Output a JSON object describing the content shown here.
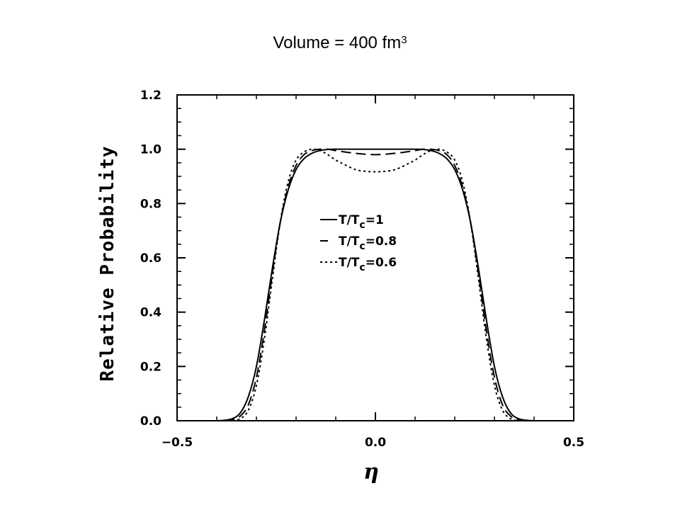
{
  "title": {
    "text": "Volume = 400 fm",
    "superscript": "3"
  },
  "chart_data": {
    "type": "line",
    "title": "Volume = 400 fm3",
    "xlabel": "η",
    "ylabel": "Relative Probability",
    "xlim": [
      -0.5,
      0.5
    ],
    "ylim": [
      0.0,
      1.2
    ],
    "x_ticks": [
      -0.5,
      0.0,
      0.5
    ],
    "x_tick_labels": [
      "−0.5",
      "0.0",
      "0.5"
    ],
    "y_ticks": [
      0.0,
      0.2,
      0.4,
      0.6,
      0.8,
      1.0,
      1.2
    ],
    "y_tick_labels": [
      "0.0",
      "0.2",
      "0.4",
      "0.6",
      "0.8",
      "1.0",
      "1.2"
    ],
    "grid": false,
    "legend_position": "center",
    "series": [
      {
        "name": "T/Tc=1",
        "style": "solid",
        "x": [
          -0.4,
          -0.38,
          -0.36,
          -0.34,
          -0.32,
          -0.3,
          -0.28,
          -0.26,
          -0.24,
          -0.22,
          -0.2,
          -0.18,
          -0.16,
          -0.14,
          -0.12,
          -0.1,
          -0.05,
          0.0,
          0.05,
          0.1,
          0.12,
          0.14,
          0.16,
          0.18,
          0.2,
          0.22,
          0.24,
          0.26,
          0.28,
          0.3,
          0.32,
          0.34,
          0.36,
          0.38,
          0.4
        ],
        "y": [
          0.0,
          0.002,
          0.008,
          0.03,
          0.09,
          0.2,
          0.37,
          0.56,
          0.73,
          0.85,
          0.925,
          0.965,
          0.985,
          0.995,
          0.999,
          1.0,
          1.0,
          1.0,
          1.0,
          1.0,
          0.999,
          0.995,
          0.985,
          0.965,
          0.925,
          0.85,
          0.73,
          0.56,
          0.37,
          0.2,
          0.09,
          0.03,
          0.008,
          0.002,
          0.0
        ]
      },
      {
        "name": "T/Tc=0.8",
        "style": "dashed",
        "x": [
          -0.38,
          -0.36,
          -0.34,
          -0.32,
          -0.3,
          -0.28,
          -0.26,
          -0.24,
          -0.22,
          -0.2,
          -0.18,
          -0.16,
          -0.14,
          -0.12,
          -0.1,
          -0.05,
          0.0,
          0.05,
          0.1,
          0.12,
          0.14,
          0.16,
          0.18,
          0.2,
          0.22,
          0.24,
          0.26,
          0.28,
          0.3,
          0.32,
          0.34,
          0.36,
          0.38
        ],
        "y": [
          0.0,
          0.004,
          0.018,
          0.06,
          0.16,
          0.33,
          0.54,
          0.73,
          0.86,
          0.94,
          0.98,
          0.995,
          1.0,
          1.0,
          0.995,
          0.985,
          0.98,
          0.985,
          0.995,
          1.0,
          1.0,
          0.995,
          0.98,
          0.94,
          0.86,
          0.73,
          0.54,
          0.33,
          0.16,
          0.06,
          0.018,
          0.004,
          0.0
        ]
      },
      {
        "name": "T/Tc=0.6",
        "style": "dotted",
        "x": [
          -0.36,
          -0.34,
          -0.32,
          -0.3,
          -0.28,
          -0.26,
          -0.24,
          -0.22,
          -0.2,
          -0.18,
          -0.16,
          -0.14,
          -0.12,
          -0.1,
          -0.08,
          -0.05,
          -0.02,
          0.0,
          0.02,
          0.05,
          0.08,
          0.1,
          0.12,
          0.14,
          0.16,
          0.18,
          0.2,
          0.22,
          0.24,
          0.26,
          0.28,
          0.3,
          0.32,
          0.34,
          0.36
        ],
        "y": [
          0.0,
          0.008,
          0.04,
          0.13,
          0.3,
          0.52,
          0.73,
          0.88,
          0.96,
          0.99,
          1.0,
          0.995,
          0.98,
          0.96,
          0.945,
          0.925,
          0.918,
          0.917,
          0.918,
          0.925,
          0.945,
          0.96,
          0.98,
          0.995,
          1.0,
          0.99,
          0.96,
          0.88,
          0.73,
          0.52,
          0.3,
          0.13,
          0.04,
          0.008,
          0.0
        ]
      }
    ]
  }
}
